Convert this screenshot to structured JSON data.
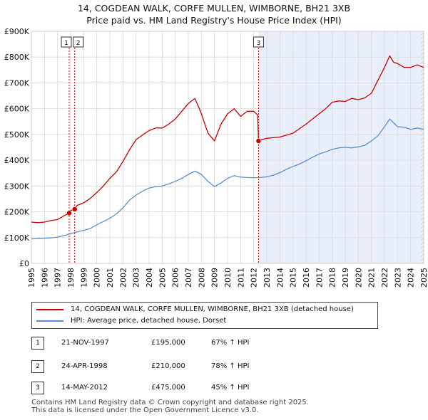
{
  "title_line1": "14, COGDEAN WALK, CORFE MULLEN, WIMBORNE, BH21 3XB",
  "title_line2": "Price paid vs. HM Land Registry's House Price Index (HPI)",
  "colors": {
    "property": "#cc0000",
    "hpi": "#5a8fd0",
    "shade": "#e8eefa",
    "grid": "#dddddd",
    "marker": "#cc0000"
  },
  "chart_data": {
    "type": "line",
    "title": "Price paid vs. HM Land Registry's House Price Index (HPI)",
    "xlabel": "",
    "ylabel": "",
    "xlim": [
      1995,
      2025
    ],
    "ylim": [
      0,
      900000
    ],
    "x_ticks": [
      1995,
      1996,
      1997,
      1998,
      1999,
      2000,
      2001,
      2002,
      2003,
      2004,
      2005,
      2006,
      2007,
      2008,
      2009,
      2010,
      2011,
      2012,
      2013,
      2014,
      2015,
      2016,
      2017,
      2018,
      2019,
      2020,
      2021,
      2022,
      2023,
      2024,
      2025
    ],
    "y_ticks": [
      0,
      100000,
      200000,
      300000,
      400000,
      500000,
      600000,
      700000,
      800000,
      900000
    ],
    "y_tick_labels": [
      "£0",
      "£100K",
      "£200K",
      "£300K",
      "£400K",
      "£500K",
      "£600K",
      "£700K",
      "£800K",
      "£900K"
    ],
    "grid": true,
    "series": [
      {
        "name": "14, COGDEAN WALK, CORFE MULLEN, WIMBORNE, BH21 3XB (detached house)",
        "color": "#cc0000",
        "x": [
          1995.0,
          1995.5,
          1996.0,
          1996.5,
          1997.0,
          1997.5,
          1997.89,
          1998.0,
          1998.31,
          1998.5,
          1999.0,
          1999.5,
          2000.0,
          2000.5,
          2001.0,
          2001.5,
          2002.0,
          2002.5,
          2003.0,
          2003.5,
          2004.0,
          2004.5,
          2005.0,
          2005.5,
          2006.0,
          2006.5,
          2007.0,
          2007.5,
          2007.8,
          2008.0,
          2008.5,
          2009.0,
          2009.5,
          2010.0,
          2010.5,
          2011.0,
          2011.5,
          2012.0,
          2012.3,
          2012.37,
          2012.5,
          2013.0,
          2014.0,
          2015.0,
          2016.0,
          2017.0,
          2017.5,
          2018.0,
          2018.5,
          2019.0,
          2019.5,
          2020.0,
          2020.5,
          2021.0,
          2021.5,
          2022.0,
          2022.4,
          2022.7,
          2023.0,
          2023.5,
          2024.0,
          2024.5,
          2025.0
        ],
        "y": [
          160000,
          158000,
          160000,
          166000,
          170000,
          185000,
          195000,
          205000,
          210000,
          225000,
          235000,
          252000,
          275000,
          300000,
          330000,
          355000,
          395000,
          440000,
          480000,
          498000,
          515000,
          525000,
          525000,
          540000,
          560000,
          590000,
          620000,
          640000,
          605000,
          580000,
          505000,
          475000,
          540000,
          580000,
          600000,
          570000,
          590000,
          590000,
          575000,
          475000,
          478000,
          485000,
          490000,
          505000,
          540000,
          580000,
          600000,
          625000,
          630000,
          628000,
          640000,
          635000,
          642000,
          660000,
          710000,
          760000,
          805000,
          780000,
          775000,
          760000,
          760000,
          770000,
          760000
        ]
      },
      {
        "name": "HPI: Average price, detached house, Dorset",
        "color": "#5a8fd0",
        "x": [
          1995.0,
          1995.5,
          1996.0,
          1996.5,
          1997.0,
          1997.5,
          1998.0,
          1998.5,
          1999.0,
          1999.5,
          2000.0,
          2000.5,
          2001.0,
          2001.5,
          2002.0,
          2002.5,
          2003.0,
          2003.5,
          2004.0,
          2004.5,
          2005.0,
          2005.5,
          2006.0,
          2006.5,
          2007.0,
          2007.5,
          2008.0,
          2008.5,
          2009.0,
          2009.5,
          2010.0,
          2010.5,
          2011.0,
          2011.5,
          2012.0,
          2012.5,
          2013.0,
          2013.5,
          2014.0,
          2014.5,
          2015.0,
          2015.5,
          2016.0,
          2016.5,
          2017.0,
          2017.5,
          2018.0,
          2018.5,
          2019.0,
          2019.5,
          2020.0,
          2020.5,
          2021.0,
          2021.5,
          2022.0,
          2022.4,
          2022.7,
          2023.0,
          2023.5,
          2024.0,
          2024.5,
          2025.0
        ],
        "y": [
          95000,
          96000,
          97000,
          99000,
          102000,
          108000,
          115000,
          122000,
          128000,
          135000,
          150000,
          162000,
          175000,
          192000,
          215000,
          245000,
          265000,
          280000,
          292000,
          298000,
          300000,
          308000,
          318000,
          330000,
          345000,
          358000,
          345000,
          318000,
          298000,
          312000,
          330000,
          340000,
          335000,
          333000,
          332000,
          333000,
          336000,
          342000,
          352000,
          365000,
          376000,
          385000,
          398000,
          412000,
          424000,
          433000,
          442000,
          448000,
          450000,
          448000,
          452000,
          458000,
          475000,
          495000,
          530000,
          560000,
          545000,
          530000,
          528000,
          520000,
          525000,
          520000
        ]
      }
    ],
    "vlines": [
      {
        "label": "1",
        "x": 1997.89
      },
      {
        "label": "2",
        "x": 1998.31
      },
      {
        "label": "3",
        "x": 2012.37
      }
    ],
    "shaded_from": 2012.37,
    "hatched_from": 2024.8,
    "sale_points": [
      {
        "x": 1997.89,
        "y": 195000
      },
      {
        "x": 1998.31,
        "y": 210000
      },
      {
        "x": 2012.37,
        "y": 475000
      }
    ]
  },
  "legend": {
    "property_label": "14, COGDEAN WALK, CORFE MULLEN, WIMBORNE, BH21 3XB (detached house)",
    "hpi_label": "HPI: Average price, detached house, Dorset"
  },
  "transactions": [
    {
      "num": "1",
      "date": "21-NOV-1997",
      "price": "£195,000",
      "hpi": "67% ↑ HPI"
    },
    {
      "num": "2",
      "date": "24-APR-1998",
      "price": "£210,000",
      "hpi": "78% ↑ HPI"
    },
    {
      "num": "3",
      "date": "14-MAY-2012",
      "price": "£475,000",
      "hpi": "45% ↑ HPI"
    }
  ],
  "footer": {
    "line1": "Contains HM Land Registry data © Crown copyright and database right 2025.",
    "line2": "This data is licensed under the Open Government Licence v3.0."
  }
}
